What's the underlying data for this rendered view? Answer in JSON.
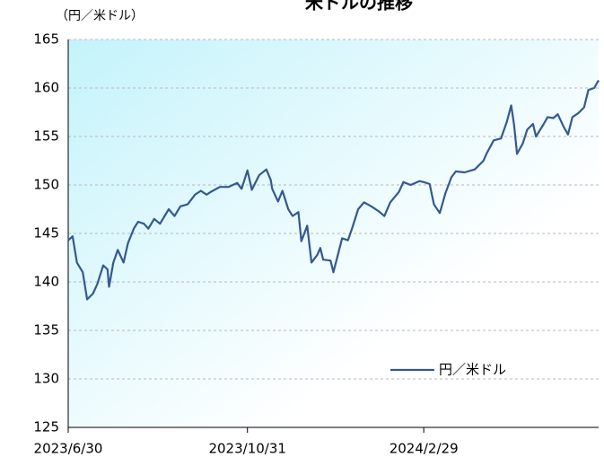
{
  "chart_data": {
    "type": "line",
    "title": "米ドルの推移",
    "y_axis_label": "（円／米ドル）",
    "x": [
      "2023/6/30",
      "2023/7/3",
      "2023/7/6",
      "2023/7/10",
      "2023/7/13",
      "2023/7/17",
      "2023/7/20",
      "2023/7/24",
      "2023/7/27",
      "2023/7/28",
      "2023/7/31",
      "2023/8/3",
      "2023/8/7",
      "2023/8/10",
      "2023/8/14",
      "2023/8/17",
      "2023/8/21",
      "2023/8/24",
      "2023/8/28",
      "2023/9/1",
      "2023/9/7",
      "2023/9/11",
      "2023/9/15",
      "2023/9/20",
      "2023/9/25",
      "2023/9/29",
      "2023/10/3",
      "2023/10/6",
      "2023/10/12",
      "2023/10/18",
      "2023/10/24",
      "2023/10/27",
      "2023/10/31",
      "2023/11/3",
      "2023/11/8",
      "2023/11/13",
      "2023/11/16",
      "2023/11/17",
      "2023/11/21",
      "2023/11/24",
      "2023/11/28",
      "2023/12/1",
      "2023/12/5",
      "2023/12/7",
      "2023/12/11",
      "2023/12/14",
      "2023/12/18",
      "2023/12/20",
      "2023/12/22",
      "2023/12/27",
      "2023/12/29",
      "2024/1/4",
      "2024/1/8",
      "2024/1/11",
      "2024/1/15",
      "2024/1/19",
      "2024/1/24",
      "2024/1/29",
      "2024/2/2",
      "2024/2/6",
      "2024/2/12",
      "2024/2/15",
      "2024/2/20",
      "2024/2/26",
      "2024/2/29",
      "2024/3/4",
      "2024/3/7",
      "2024/3/11",
      "2024/3/15",
      "2024/3/19",
      "2024/3/22",
      "2024/3/28",
      "2024/4/4",
      "2024/4/10",
      "2024/4/12",
      "2024/4/17",
      "2024/4/22",
      "2024/4/26",
      "2024/4/29",
      "2024/5/1",
      "2024/5/3",
      "2024/5/7",
      "2024/5/10",
      "2024/5/14",
      "2024/5/16",
      "2024/5/21",
      "2024/5/24",
      "2024/5/28",
      "2024/5/31",
      "2024/6/4",
      "2024/6/7",
      "2024/6/10",
      "2024/6/14",
      "2024/6/18",
      "2024/6/21",
      "2024/6/25",
      "2024/6/28"
    ],
    "series": [
      {
        "name": "円／米ドル",
        "color": "#34598f",
        "values": [
          144.3,
          144.7,
          142,
          141,
          138.2,
          138.8,
          139.8,
          141.7,
          141.3,
          139.5,
          142,
          143.3,
          142,
          144,
          145.5,
          146.2,
          146,
          145.5,
          146.5,
          146,
          147.5,
          146.8,
          147.8,
          148,
          149,
          149.4,
          149,
          149.3,
          149.8,
          149.8,
          150.2,
          149.6,
          151.5,
          149.5,
          151,
          151.6,
          150.5,
          149.6,
          148.3,
          149.4,
          147.5,
          146.8,
          147.2,
          144.2,
          145.8,
          142,
          142.8,
          143.5,
          142.3,
          142.2,
          141,
          144.5,
          144.3,
          145.6,
          147.5,
          148.2,
          147.8,
          147.3,
          146.8,
          148.2,
          149.3,
          150.3,
          150,
          150.4,
          150.3,
          150.1,
          148,
          147.1,
          149.2,
          150.8,
          151.4,
          151.3,
          151.6,
          152.5,
          153.2,
          154.6,
          154.8,
          156.5,
          158.2,
          156.2,
          153.2,
          154.3,
          155.7,
          156.3,
          155,
          156.2,
          157,
          156.9,
          157.3,
          156,
          155.2,
          157,
          157.4,
          158,
          159.8,
          160,
          160.8
        ]
      }
    ],
    "xlim": [
      "2023/6/30",
      "2024/6/28"
    ],
    "xticks": [
      "2023/6/30",
      "2023/10/31",
      "2024/2/29"
    ],
    "ylim": [
      125,
      165
    ],
    "yticks": [
      125,
      130,
      135,
      140,
      145,
      150,
      155,
      160,
      165
    ],
    "grid": true,
    "legend": "lower right"
  }
}
